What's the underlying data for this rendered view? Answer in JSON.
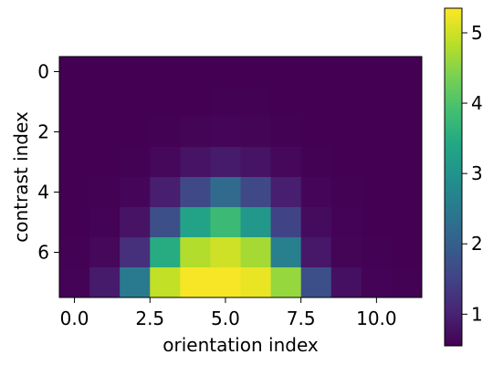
{
  "chart_data": {
    "type": "heatmap",
    "title": "",
    "xlabel": "orientation index",
    "ylabel": "contrast index",
    "grid": false,
    "colormap": "viridis",
    "x_ticks": [
      {
        "value": 0.0,
        "label": "0.0"
      },
      {
        "value": 2.5,
        "label": "2.5"
      },
      {
        "value": 5.0,
        "label": "5.0"
      },
      {
        "value": 7.5,
        "label": "7.5"
      },
      {
        "value": 10.0,
        "label": "10.0"
      }
    ],
    "y_ticks": [
      {
        "value": 0,
        "label": "0"
      },
      {
        "value": 2,
        "label": "2"
      },
      {
        "value": 4,
        "label": "4"
      },
      {
        "value": 6,
        "label": "6"
      }
    ],
    "xlim": [
      -0.5,
      11.5
    ],
    "ylim": [
      7.5,
      -0.5
    ],
    "color_range": [
      0.55,
      5.35
    ],
    "colorbar_ticks": [
      {
        "value": 1,
        "label": "1"
      },
      {
        "value": 2,
        "label": "2"
      },
      {
        "value": 3,
        "label": "3"
      },
      {
        "value": 4,
        "label": "4"
      },
      {
        "value": 5,
        "label": "5"
      }
    ],
    "values": [
      [
        0.55,
        0.55,
        0.55,
        0.55,
        0.55,
        0.55,
        0.55,
        0.55,
        0.55,
        0.55,
        0.55,
        0.55
      ],
      [
        0.55,
        0.55,
        0.55,
        0.55,
        0.55,
        0.56,
        0.56,
        0.55,
        0.55,
        0.55,
        0.55,
        0.55
      ],
      [
        0.55,
        0.55,
        0.55,
        0.57,
        0.6,
        0.62,
        0.6,
        0.57,
        0.55,
        0.55,
        0.55,
        0.55
      ],
      [
        0.55,
        0.55,
        0.57,
        0.65,
        0.8,
        0.9,
        0.8,
        0.65,
        0.57,
        0.55,
        0.55,
        0.55
      ],
      [
        0.55,
        0.56,
        0.62,
        0.95,
        1.6,
        2.2,
        1.6,
        0.95,
        0.62,
        0.56,
        0.55,
        0.55
      ],
      [
        0.55,
        0.58,
        0.8,
        1.7,
        3.3,
        3.8,
        3.1,
        1.5,
        0.7,
        0.58,
        0.55,
        0.55
      ],
      [
        0.56,
        0.65,
        1.2,
        3.5,
        4.8,
        5.0,
        4.7,
        2.6,
        0.85,
        0.6,
        0.56,
        0.55
      ],
      [
        0.58,
        0.9,
        2.5,
        4.9,
        5.3,
        5.3,
        5.2,
        4.6,
        1.7,
        0.75,
        0.58,
        0.56
      ]
    ]
  }
}
